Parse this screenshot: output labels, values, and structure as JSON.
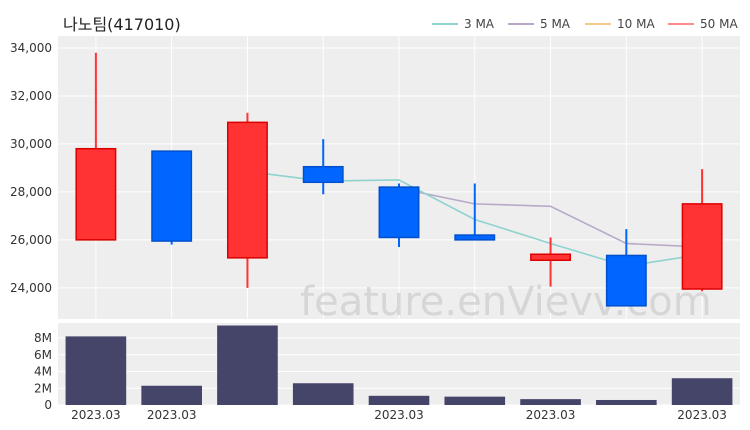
{
  "chart_data": [
    {
      "type": "candlestick",
      "title": "나노팀(417010)",
      "watermark": "feature.enVievv.com",
      "x_labels": [
        "2023.03",
        "2023.03",
        "2023.03",
        "2023.03"
      ],
      "y_ticks": [
        "24,000",
        "26,000",
        "28,000",
        "30,000",
        "32,000",
        "34,000"
      ],
      "ylim": [
        22700,
        34500
      ],
      "legend": [
        {
          "name": "3 MA",
          "color": "#8fd3cf"
        },
        {
          "name": "5 MA",
          "color": "#b9a9c8"
        },
        {
          "name": "10 MA",
          "color": "#f3c98b"
        },
        {
          "name": "50 MA",
          "color": "#ff8a8a"
        }
      ],
      "candles": [
        {
          "open": 26000,
          "high": 33800,
          "low": 26000,
          "close": 29800
        },
        {
          "open": 29700,
          "high": 29700,
          "low": 25800,
          "close": 25950
        },
        {
          "open": 25250,
          "high": 31300,
          "low": 24000,
          "close": 30900
        },
        {
          "open": 29050,
          "high": 30200,
          "low": 27900,
          "close": 28400
        },
        {
          "open": 28200,
          "high": 28350,
          "low": 25700,
          "close": 26100
        },
        {
          "open": 26200,
          "high": 28350,
          "low": 26000,
          "close": 26000
        },
        {
          "open": 25150,
          "high": 26100,
          "low": 24050,
          "close": 25400
        },
        {
          "open": 25350,
          "high": 26450,
          "low": 23250,
          "close": 23250
        },
        {
          "open": 23950,
          "high": 28950,
          "low": 23850,
          "close": 27500
        }
      ],
      "ma3": [
        null,
        null,
        28850,
        28450,
        28500,
        26850,
        25850,
        24900,
        25400
      ],
      "ma5": [
        null,
        null,
        null,
        null,
        28150,
        27500,
        27400,
        25850,
        25700
      ],
      "colors": {
        "up": "#ff3333",
        "down": "#0066ff"
      }
    },
    {
      "type": "bar",
      "y_ticks": [
        "0",
        "2M",
        "4M",
        "6M",
        "8M"
      ],
      "ylim": [
        0,
        9800000
      ],
      "x_labels": [
        "2023.03",
        "2023.03",
        "2023.03",
        "2023.03"
      ],
      "values": [
        8200000,
        2300000,
        9500000,
        2600000,
        1100000,
        1000000,
        700000,
        600000,
        3200000
      ],
      "color": "#45456a"
    }
  ]
}
